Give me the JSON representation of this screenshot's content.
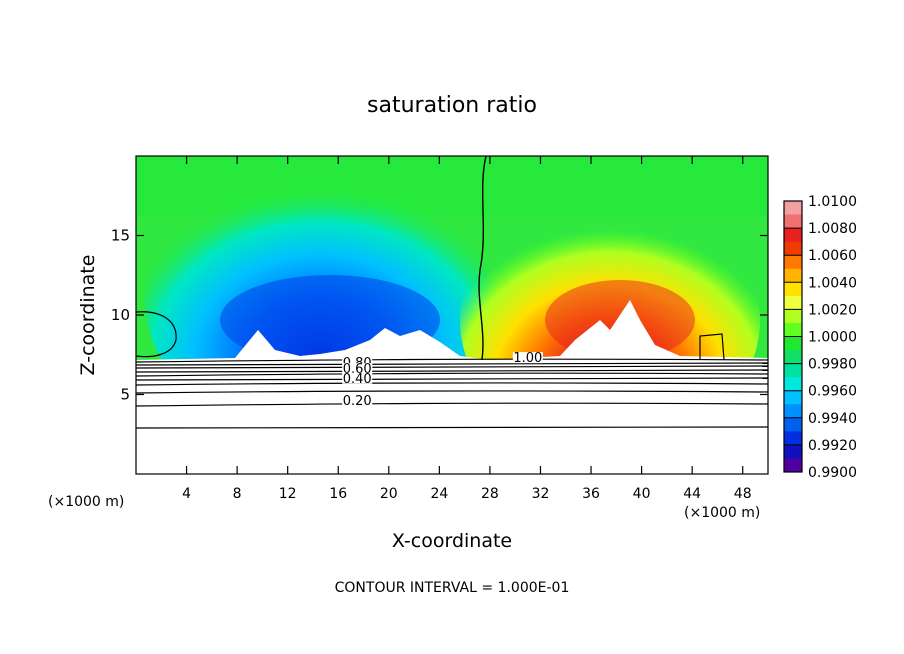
{
  "chart_data": {
    "type": "heatmap",
    "title": "saturation ratio",
    "xlabel": "X-coordinate",
    "ylabel": "Z-coordinate",
    "x_unit_left": "(×1000 m)",
    "x_unit_right": "(×1000 m)",
    "xlim": [
      0,
      50
    ],
    "ylim": [
      0,
      20
    ],
    "xticks": [
      "4",
      "8",
      "12",
      "16",
      "20",
      "24",
      "28",
      "32",
      "36",
      "40",
      "44",
      "48"
    ],
    "yticks": [
      "5",
      "10",
      "15"
    ],
    "contour_interval_text": "CONTOUR INTERVAL = 1.000E-01",
    "colorbar": {
      "labels": [
        "1.0100",
        "1.0080",
        "1.0060",
        "1.0040",
        "1.0020",
        "1.0000",
        "0.9980",
        "0.9960",
        "0.9940",
        "0.9920",
        "0.9900"
      ],
      "colors": [
        "#f4a0a0",
        "#f07070",
        "#e82020",
        "#f03c00",
        "#ff7800",
        "#ffb400",
        "#ffe000",
        "#f0ff40",
        "#b0ff20",
        "#60ff20",
        "#20e830",
        "#10e068",
        "#00e0a0",
        "#00e8e0",
        "#00c0ff",
        "#0090ff",
        "#0060f0",
        "#0030e0",
        "#1010c0",
        "#5000a0"
      ]
    },
    "contour_labels": [
      {
        "text": "1.00",
        "x": 31.0,
        "z": 7.1
      },
      {
        "text": "0.80",
        "x": 17.5,
        "z": 6.8
      },
      {
        "text": "0.60",
        "x": 17.5,
        "z": 6.4
      },
      {
        "text": "0.40",
        "x": 17.5,
        "z": 5.8
      },
      {
        "text": "0.20",
        "x": 17.5,
        "z": 4.4
      }
    ]
  }
}
